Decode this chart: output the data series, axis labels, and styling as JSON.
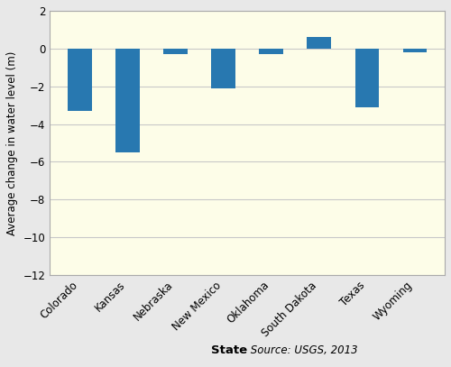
{
  "categories": [
    "Colorado",
    "Kansas",
    "Nebraska",
    "New Mexico",
    "Oklahoma",
    "South Dakota",
    "Texas",
    "Wyoming"
  ],
  "values": [
    -3.3,
    -5.5,
    -0.3,
    -2.1,
    -0.3,
    0.6,
    -3.1,
    -0.2
  ],
  "bar_color": "#2878b0",
  "ylabel": "Average change in water level (m)",
  "ylim": [
    -12,
    2
  ],
  "yticks": [
    -12,
    -10,
    -8,
    -6,
    -4,
    -2,
    0,
    2
  ],
  "background_color": "#fdfde8",
  "fig_background": "#e8e8e8",
  "grid_color": "#c8c8c8",
  "bar_width": 0.5,
  "xlabel_bold": "State",
  "xlabel_source": " Source: USGS, 2013"
}
